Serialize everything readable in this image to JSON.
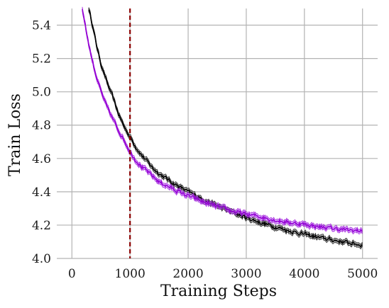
{
  "chart_data": {
    "type": "line",
    "title": "",
    "xlabel": "Training Steps",
    "ylabel": "Train Loss",
    "xlim": [
      -260,
      5260
    ],
    "ylim": [
      4.0,
      5.5
    ],
    "x_ticks": [
      0,
      1000,
      2000,
      3000,
      4000,
      5000
    ],
    "y_ticks": [
      4.0,
      4.2,
      4.4,
      4.6,
      4.8,
      5.0,
      5.2,
      5.4
    ],
    "grid": true,
    "legend": "none",
    "band_halfwidth": 0.013,
    "vline": {
      "x": 1000,
      "color": "#8b0000",
      "style": "dashed"
    },
    "series": [
      {
        "color": "#000000",
        "band_color": "#7a7a7a",
        "x": [
          290,
          300,
          350,
          400,
          450,
          500,
          600,
          700,
          800,
          900,
          1000,
          1100,
          1200,
          1300,
          1400,
          1500,
          1750,
          2000,
          2250,
          2500,
          2750,
          3000,
          3250,
          3500,
          3750,
          4000,
          4250,
          4500,
          4750,
          5000
        ],
        "values": [
          5.5,
          5.485,
          5.41,
          5.32,
          5.24,
          5.17,
          5.06,
          4.97,
          4.87,
          4.79,
          4.73,
          4.67,
          4.62,
          4.58,
          4.54,
          4.51,
          4.45,
          4.4,
          4.355,
          4.315,
          4.28,
          4.245,
          4.215,
          4.19,
          4.165,
          4.145,
          4.125,
          4.11,
          4.095,
          4.08
        ]
      },
      {
        "color": "#9400d3",
        "band_color": "#c77dff",
        "x": [
          180,
          200,
          250,
          300,
          350,
          400,
          450,
          500,
          600,
          700,
          800,
          900,
          1000,
          1100,
          1200,
          1300,
          1400,
          1500,
          1750,
          2000,
          2250,
          2500,
          2750,
          3000,
          3250,
          3500,
          3750,
          4000,
          4250,
          4500,
          4750,
          5000
        ],
        "values": [
          5.5,
          5.46,
          5.36,
          5.27,
          5.19,
          5.12,
          5.06,
          5.0,
          4.91,
          4.84,
          4.77,
          4.71,
          4.64,
          4.59,
          4.55,
          4.52,
          4.49,
          4.46,
          4.415,
          4.375,
          4.34,
          4.31,
          4.285,
          4.265,
          4.25,
          4.23,
          4.215,
          4.205,
          4.19,
          4.18,
          4.17,
          4.165
        ]
      }
    ]
  }
}
